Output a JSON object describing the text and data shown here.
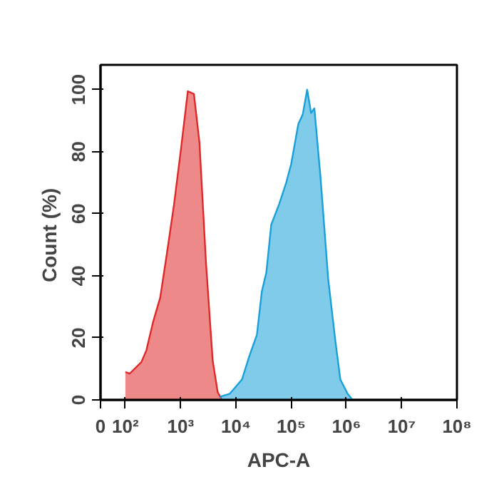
{
  "chart_data": {
    "type": "area",
    "xlabel": "APC-A",
    "ylabel": "Count  (%)",
    "log": "x",
    "xlim": [
      0,
      100000000
    ],
    "ylim": [
      0,
      108
    ],
    "xticks": [
      0,
      {
        "value": 100,
        "label": "10²"
      },
      {
        "value": 1000,
        "label": "10³"
      },
      {
        "value": 10000,
        "label": "10⁴"
      },
      {
        "value": 100000,
        "label": "10⁵"
      },
      {
        "value": 1000000,
        "label": "10⁶"
      },
      {
        "value": 10000000,
        "label": "10⁷"
      },
      {
        "value": 100000000,
        "label": "10⁸"
      }
    ],
    "yticks": [
      0,
      20,
      40,
      60,
      80,
      100
    ],
    "grid": false,
    "series": [
      {
        "color": "#e02828",
        "x": [
          100,
          120,
          195,
          240,
          316,
          427,
          562,
          759,
          1000,
          1350,
          1740,
          2190,
          2880,
          3800,
          4680,
          5620
        ],
        "values": [
          9,
          8.5,
          12.2,
          16,
          25,
          33,
          47,
          63,
          80,
          99.5,
          98.6,
          83,
          44,
          12.7,
          2.5,
          0
        ]
      },
      {
        "color": "#1aa0d8",
        "x": [
          5130,
          7760,
          12900,
          17400,
          24000,
          29500,
          35500,
          43600,
          60300,
          81300,
          100000,
          135000,
          162000,
          195000,
          229000,
          263000,
          339000,
          468000,
          631000,
          776000,
          1050000,
          1290000
        ],
        "values": [
          1,
          2,
          6.6,
          14,
          21,
          35,
          41,
          56.5,
          63,
          70,
          76,
          89,
          92,
          100,
          92.5,
          94,
          72,
          39,
          19,
          6.6,
          2,
          0
        ]
      }
    ]
  }
}
